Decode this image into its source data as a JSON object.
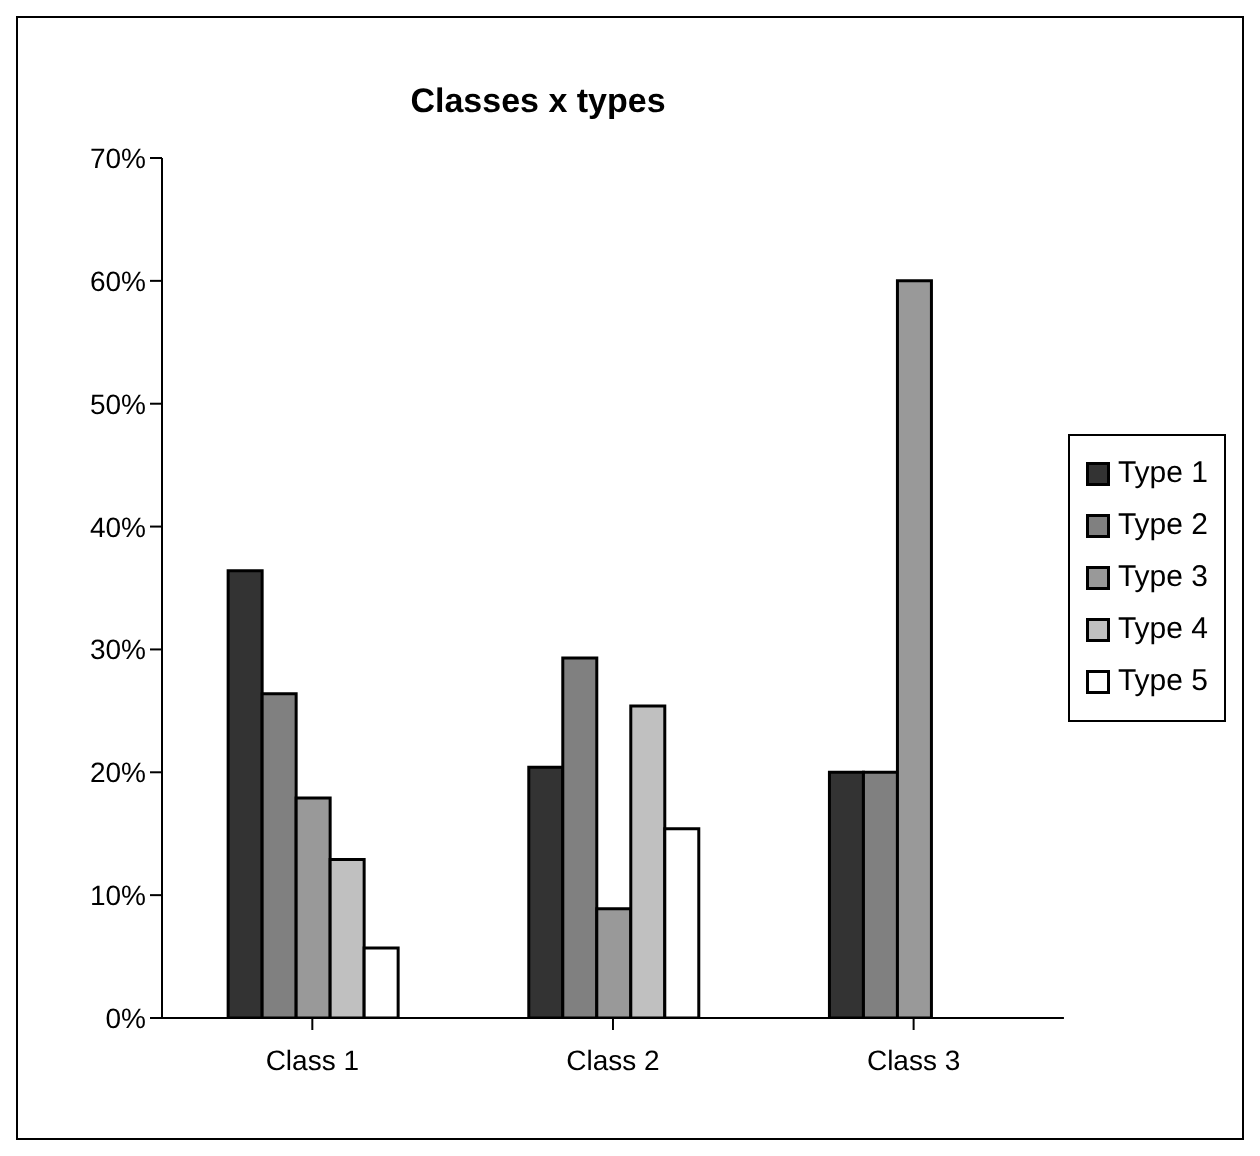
{
  "chart_data": {
    "type": "bar",
    "title": "Classes x types",
    "categories": [
      "Class 1",
      "Class 2",
      "Class 3"
    ],
    "series": [
      {
        "name": "Type 1",
        "color": "#333333",
        "values": [
          36.4,
          20.4,
          20
        ]
      },
      {
        "name": "Type 2",
        "color": "#808080",
        "values": [
          26.4,
          29.3,
          20
        ]
      },
      {
        "name": "Type 3",
        "color": "#999999",
        "values": [
          17.9,
          8.9,
          60
        ]
      },
      {
        "name": "Type 4",
        "color": "#c0c0c0",
        "values": [
          12.9,
          25.4,
          null
        ]
      },
      {
        "name": "Type 5",
        "color": "#ffffff",
        "values": [
          5.7,
          15.4,
          null
        ]
      }
    ],
    "ylim": [
      0,
      70
    ],
    "yticks": [
      {
        "value": 0,
        "label": "0%"
      },
      {
        "value": 10,
        "label": "10%"
      },
      {
        "value": 20,
        "label": "20%"
      },
      {
        "value": 30,
        "label": "30%"
      },
      {
        "value": 40,
        "label": "40%"
      },
      {
        "value": 50,
        "label": "50%"
      },
      {
        "value": 60,
        "label": "60%"
      },
      {
        "value": 70,
        "label": "70%"
      }
    ],
    "grid": false,
    "legend": "right"
  }
}
